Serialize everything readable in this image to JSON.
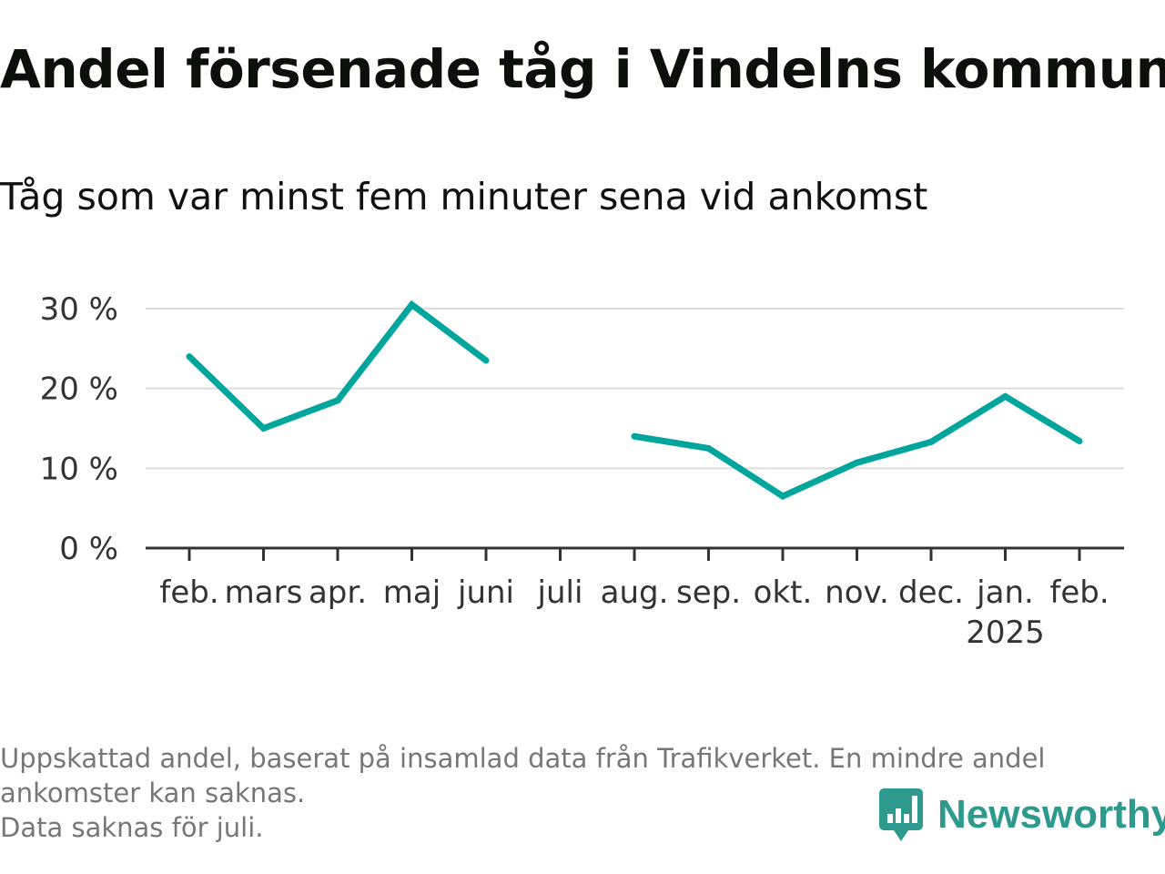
{
  "title": "Andel försenade tåg i Vindelns kommun",
  "subtitle": "Tåg som var minst fem minuter sena vid ankomst",
  "footer": {
    "line1": "Uppskattad andel, baserat på insamlad data från Trafikverket. En mindre andel",
    "line2": "ankomster kan saknas.",
    "line3": "Data saknas för juli."
  },
  "brand": {
    "name": "Newsworthy",
    "icon": "newsworthy-logo-icon",
    "color": "#2e9a8d"
  },
  "chart_data": {
    "type": "line",
    "categories": [
      "feb.",
      "mars",
      "apr.",
      "maj",
      "juni",
      "juli",
      "aug.",
      "sep.",
      "okt.",
      "nov.",
      "dec.",
      "jan.",
      "feb."
    ],
    "year_label": "2025",
    "year_label_under_category_index": 11,
    "series": [
      {
        "values": [
          24,
          15,
          18.5,
          30.5,
          23.5,
          null,
          14,
          12.5,
          6.5,
          10.7,
          13.3,
          19,
          13.4
        ],
        "color": "#00a59b"
      }
    ],
    "ylim": [
      0,
      30
    ],
    "yticks": [
      0,
      10,
      20,
      30
    ],
    "ytick_labels": [
      "0 %",
      "10 %",
      "20 %",
      "30 %"
    ],
    "xlabel": "",
    "ylabel": "",
    "grid": true,
    "legend": "none"
  }
}
